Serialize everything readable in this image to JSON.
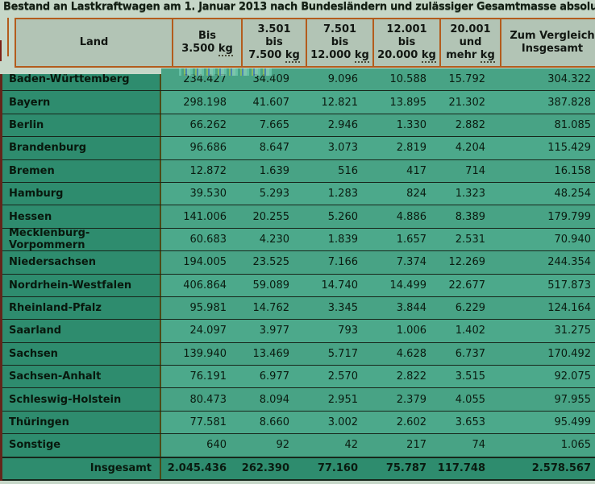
{
  "title": "Bestand an Lastkraftwagen am 1. Januar 2013 nach Bundesländern und zulässiger Gesamtmasse absolut",
  "colors": {
    "page_bg": "#c6d7c8",
    "header_bg": "#b2c4b5",
    "header_border": "#b35c1d",
    "label_cell_bg": "#2e8c6e",
    "data_cell_bg": "#48a385",
    "footer_bg": "#2e8c6e",
    "row_border": "#17261b"
  },
  "table": {
    "columns": [
      {
        "id": "land",
        "lines": [
          "Land"
        ]
      },
      {
        "id": "bis-3500",
        "lines": [
          "Bis",
          "3.500 kg"
        ]
      },
      {
        "id": "3501-7500",
        "lines": [
          "3.501",
          "bis",
          "7.500 kg"
        ]
      },
      {
        "id": "7501-12000",
        "lines": [
          "7.501",
          "bis",
          "12.000 kg"
        ]
      },
      {
        "id": "12001-20000",
        "lines": [
          "12.001",
          "bis",
          "20.000 kg"
        ]
      },
      {
        "id": "20001-mehr",
        "lines": [
          "20.001",
          "und",
          "mehr kg"
        ]
      },
      {
        "id": "vergleich",
        "lines": [
          "Zum Vergleich",
          "Insgesamt"
        ]
      }
    ],
    "rows": [
      {
        "label": "Baden-Württemberg",
        "values": [
          "234.427",
          "34.409",
          "9.096",
          "10.588",
          "15.792",
          "304.322"
        ]
      },
      {
        "label": "Bayern",
        "values": [
          "298.198",
          "41.607",
          "12.821",
          "13.895",
          "21.302",
          "387.828"
        ]
      },
      {
        "label": "Berlin",
        "values": [
          "66.262",
          "7.665",
          "2.946",
          "1.330",
          "2.882",
          "81.085"
        ]
      },
      {
        "label": "Brandenburg",
        "values": [
          "96.686",
          "8.647",
          "3.073",
          "2.819",
          "4.204",
          "115.429"
        ]
      },
      {
        "label": "Bremen",
        "values": [
          "12.872",
          "1.639",
          "516",
          "417",
          "714",
          "16.158"
        ]
      },
      {
        "label": "Hamburg",
        "values": [
          "39.530",
          "5.293",
          "1.283",
          "824",
          "1.323",
          "48.254"
        ]
      },
      {
        "label": "Hessen",
        "values": [
          "141.006",
          "20.255",
          "5.260",
          "4.886",
          "8.389",
          "179.799"
        ]
      },
      {
        "label": "Mecklenburg-Vorpommern",
        "values": [
          "60.683",
          "4.230",
          "1.839",
          "1.657",
          "2.531",
          "70.940"
        ]
      },
      {
        "label": "Niedersachsen",
        "values": [
          "194.005",
          "23.525",
          "7.166",
          "7.374",
          "12.269",
          "244.354"
        ]
      },
      {
        "label": "Nordrhein-Westfalen",
        "values": [
          "406.864",
          "59.089",
          "14.740",
          "14.499",
          "22.677",
          "517.873"
        ]
      },
      {
        "label": "Rheinland-Pfalz",
        "values": [
          "95.981",
          "14.762",
          "3.345",
          "3.844",
          "6.229",
          "124.164"
        ]
      },
      {
        "label": "Saarland",
        "values": [
          "24.097",
          "3.977",
          "793",
          "1.006",
          "1.402",
          "31.275"
        ]
      },
      {
        "label": "Sachsen",
        "values": [
          "139.940",
          "13.469",
          "5.717",
          "4.628",
          "6.737",
          "170.492"
        ]
      },
      {
        "label": "Sachsen-Anhalt",
        "values": [
          "76.191",
          "6.977",
          "2.570",
          "2.822",
          "3.515",
          "92.075"
        ]
      },
      {
        "label": "Schleswig-Holstein",
        "values": [
          "80.473",
          "8.094",
          "2.951",
          "2.379",
          "4.055",
          "97.955"
        ]
      },
      {
        "label": "Thüringen",
        "values": [
          "77.581",
          "8.660",
          "3.002",
          "2.602",
          "3.653",
          "95.499"
        ]
      },
      {
        "label": "Sonstige",
        "values": [
          "640",
          "92",
          "42",
          "217",
          "74",
          "1.065"
        ]
      }
    ],
    "footer": {
      "label": "Insgesamt",
      "values": [
        "2.045.436",
        "262.390",
        "77.160",
        "75.787",
        "117.748",
        "2.578.567"
      ]
    }
  }
}
